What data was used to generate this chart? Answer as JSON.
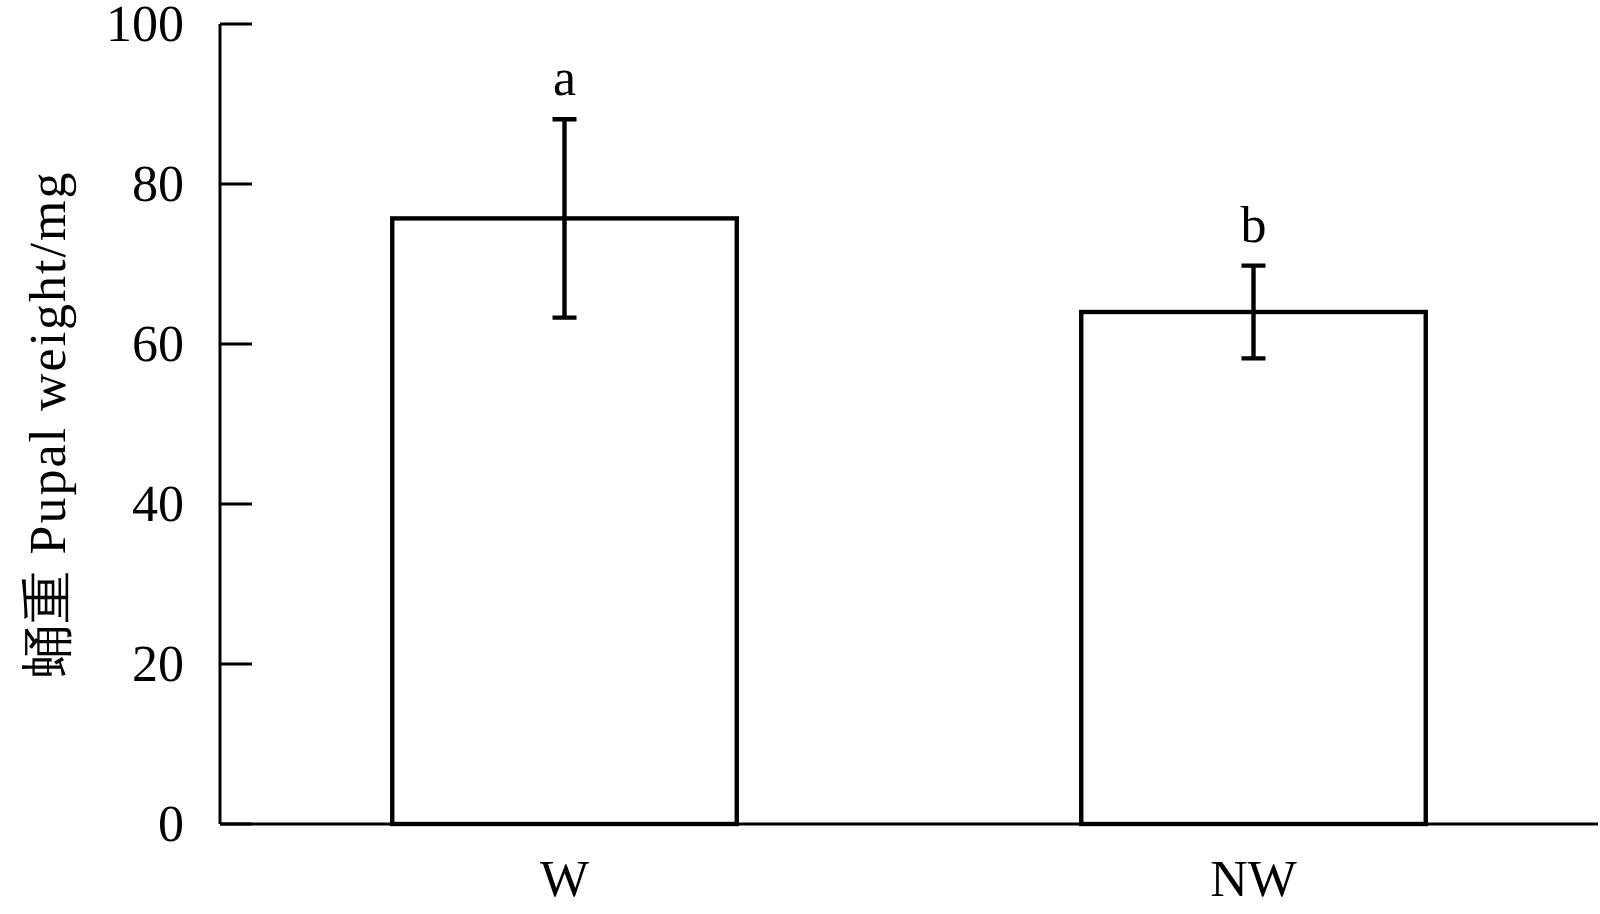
{
  "chart_data": {
    "type": "bar",
    "ylabel": "蛹重 Pupal weight/mg",
    "categories": [
      "W",
      "NW"
    ],
    "values": [
      75.7,
      64.0
    ],
    "errors": [
      12.4,
      5.8
    ],
    "color": "#ffffff",
    "ylim": [
      0,
      100
    ],
    "yticks": [
      0,
      20,
      40,
      60,
      80,
      100
    ],
    "annotations": [
      {
        "text": "a",
        "x": "W",
        "y": 88.1
      },
      {
        "text": "b",
        "x": "NW",
        "y": 69.8
      }
    ]
  }
}
